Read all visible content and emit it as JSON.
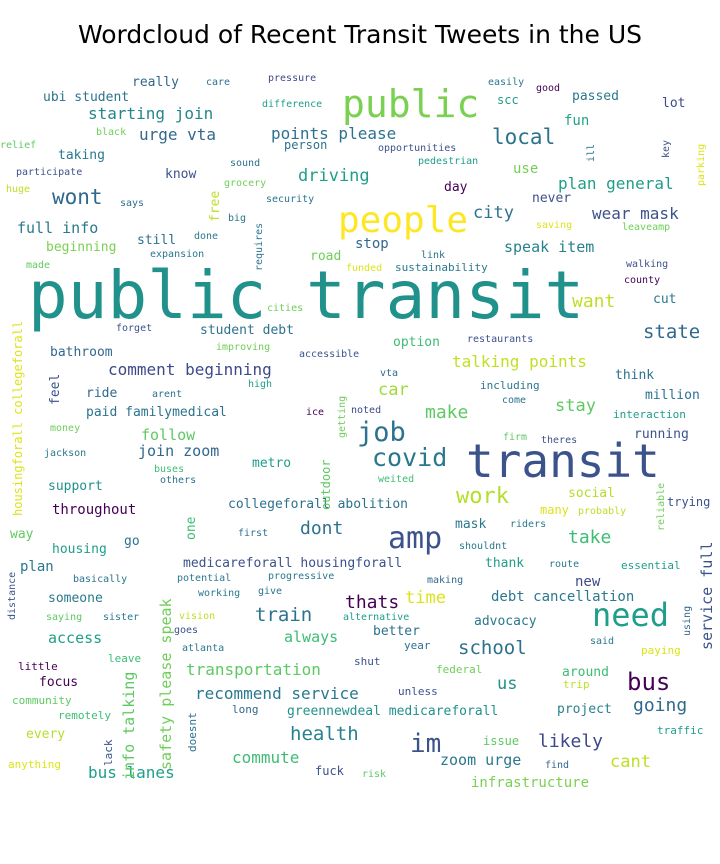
{
  "chart_data": {
    "type": "wordcloud",
    "title": "Wordcloud of Recent Transit Tweets in the US",
    "colormap": "viridis",
    "background": "#ffffff",
    "words": [
      {
        "text": "public transit",
        "weight": 1.0,
        "color": "#21918c"
      },
      {
        "text": "transit",
        "weight": 0.62,
        "color": "#3b528b"
      },
      {
        "text": "public",
        "weight": 0.55,
        "color": "#7ad151"
      },
      {
        "text": "people",
        "weight": 0.52,
        "color": "#fde725"
      },
      {
        "text": "need",
        "weight": 0.46,
        "color": "#1f9e89"
      },
      {
        "text": "amp",
        "weight": 0.44,
        "color": "#3b528b"
      },
      {
        "text": "job",
        "weight": 0.38,
        "color": "#2c728e"
      },
      {
        "text": "covid",
        "weight": 0.36,
        "color": "#2a788e"
      },
      {
        "text": "im",
        "weight": 0.36,
        "color": "#3b528b"
      },
      {
        "text": "bus",
        "weight": 0.34,
        "color": "#440154"
      },
      {
        "text": "work",
        "weight": 0.32,
        "color": "#b5de2b"
      },
      {
        "text": "wont",
        "weight": 0.3,
        "color": "#31688e"
      },
      {
        "text": "local",
        "weight": 0.3,
        "color": "#2c728e"
      },
      {
        "text": "school",
        "weight": 0.28,
        "color": "#2c728e"
      },
      {
        "text": "health",
        "weight": 0.28,
        "color": "#26828e"
      },
      {
        "text": "going",
        "weight": 0.27,
        "color": "#31688e"
      },
      {
        "text": "train",
        "weight": 0.27,
        "color": "#2c728e"
      },
      {
        "text": "state",
        "weight": 0.27,
        "color": "#31688e"
      },
      {
        "text": "likely",
        "weight": 0.26,
        "color": "#3e4989"
      },
      {
        "text": "thats",
        "weight": 0.26,
        "color": "#440154"
      },
      {
        "text": "make",
        "weight": 0.26,
        "color": "#5ec962"
      },
      {
        "text": "dont",
        "weight": 0.26,
        "color": "#2c728e"
      },
      {
        "text": "take",
        "weight": 0.26,
        "color": "#3dbc74"
      },
      {
        "text": "want",
        "weight": 0.26,
        "color": "#bddf26"
      },
      {
        "text": "city",
        "weight": 0.25,
        "color": "#2c728e"
      },
      {
        "text": "driving",
        "weight": 0.25,
        "color": "#1f9e89"
      },
      {
        "text": "cant",
        "weight": 0.25,
        "color": "#bddf26"
      },
      {
        "text": "time",
        "weight": 0.25,
        "color": "#dde318"
      },
      {
        "text": "us",
        "weight": 0.25,
        "color": "#21918c"
      },
      {
        "text": "car",
        "weight": 0.25,
        "color": "#a0da39"
      },
      {
        "text": "stay",
        "weight": 0.25,
        "color": "#5ec962"
      },
      {
        "text": "wear mask",
        "weight": 0.24,
        "color": "#3b528b"
      },
      {
        "text": "plan general",
        "weight": 0.24,
        "color": "#1f9e89"
      },
      {
        "text": "starting join",
        "weight": 0.24,
        "color": "#25858e"
      },
      {
        "text": "talking points",
        "weight": 0.24,
        "color": "#c2df23"
      },
      {
        "text": "bus lanes",
        "weight": 0.23,
        "color": "#1f9e89"
      },
      {
        "text": "transportation",
        "weight": 0.23,
        "color": "#5ec962"
      },
      {
        "text": "recommend service",
        "weight": 0.23,
        "color": "#2a788e"
      },
      {
        "text": "comment beginning",
        "weight": 0.23,
        "color": "#3e4989"
      },
      {
        "text": "commute",
        "weight": 0.23,
        "color": "#3dbc74"
      },
      {
        "text": "urge vta",
        "weight": 0.23,
        "color": "#31688e"
      },
      {
        "text": "points please",
        "weight": 0.23,
        "color": "#2c728e"
      },
      {
        "text": "zoom urge",
        "weight": 0.22,
        "color": "#2a788e"
      },
      {
        "text": "join zoom",
        "weight": 0.22,
        "color": "#31688e"
      },
      {
        "text": "speak item",
        "weight": 0.22,
        "color": "#26828e"
      },
      {
        "text": "full info",
        "weight": 0.22,
        "color": "#2a788e"
      },
      {
        "text": "access",
        "weight": 0.22,
        "color": "#1fa088"
      },
      {
        "text": "always",
        "weight": 0.22,
        "color": "#3dbc74"
      },
      {
        "text": "follow",
        "weight": 0.22,
        "color": "#5ec962"
      },
      {
        "text": "service full",
        "weight": 0.22,
        "color": "#3b528b"
      },
      {
        "text": "info talking",
        "weight": 0.22,
        "color": "#5ec962"
      },
      {
        "text": "safety please speak",
        "weight": 0.22,
        "color": "#6ece58"
      },
      {
        "text": "debt cancellation",
        "weight": 0.21,
        "color": "#2a788e"
      },
      {
        "text": "fun",
        "weight": 0.21,
        "color": "#20a486"
      },
      {
        "text": "use",
        "weight": 0.21,
        "color": "#73d056"
      },
      {
        "text": "stop",
        "weight": 0.2,
        "color": "#31688e"
      },
      {
        "text": "infrastructure",
        "weight": 0.2,
        "color": "#7ad151"
      },
      {
        "text": "new",
        "weight": 0.2,
        "color": "#3e4989"
      },
      {
        "text": "plan",
        "weight": 0.2,
        "color": "#2a788e"
      },
      {
        "text": "metro",
        "weight": 0.19,
        "color": "#1f9e89"
      },
      {
        "text": "project",
        "weight": 0.19,
        "color": "#26828e"
      },
      {
        "text": "around",
        "weight": 0.19,
        "color": "#3dbc74"
      },
      {
        "text": "student debt",
        "weight": 0.19,
        "color": "#2c728e"
      },
      {
        "text": "collegeforall abolition",
        "weight": 0.19,
        "color": "#2c728e"
      },
      {
        "text": "medicareforall housingforall",
        "weight": 0.19,
        "color": "#3b528b"
      },
      {
        "text": "paid familymedical",
        "weight": 0.19,
        "color": "#2c728e"
      },
      {
        "text": "mask",
        "weight": 0.18,
        "color": "#2a788e"
      },
      {
        "text": "thank",
        "weight": 0.18,
        "color": "#1f9e89"
      },
      {
        "text": "better",
        "weight": 0.18,
        "color": "#2c728e"
      },
      {
        "text": "advocacy",
        "weight": 0.18,
        "color": "#2a788e"
      },
      {
        "text": "throughout",
        "weight": 0.18,
        "color": "#440154"
      },
      {
        "text": "support",
        "weight": 0.18,
        "color": "#21918c"
      },
      {
        "text": "housing",
        "weight": 0.18,
        "color": "#1f9e89"
      },
      {
        "text": "bathroom",
        "weight": 0.18,
        "color": "#31688e"
      },
      {
        "text": "someone",
        "weight": 0.17,
        "color": "#2a788e"
      },
      {
        "text": "ride",
        "weight": 0.17,
        "color": "#31688e"
      },
      {
        "text": "option",
        "weight": 0.17,
        "color": "#3dbc74"
      },
      {
        "text": "million",
        "weight": 0.17,
        "color": "#2c728e"
      },
      {
        "text": "running",
        "weight": 0.17,
        "color": "#3b528b"
      },
      {
        "text": "social",
        "weight": 0.17,
        "color": "#b5de2b"
      },
      {
        "text": "every",
        "weight": 0.17,
        "color": "#b5de2b"
      },
      {
        "text": "focus",
        "weight": 0.17,
        "color": "#440154"
      },
      {
        "text": "taking",
        "weight": 0.17,
        "color": "#2a788e"
      },
      {
        "text": "know",
        "weight": 0.17,
        "color": "#3b528b"
      },
      {
        "text": "beginning",
        "weight": 0.17,
        "color": "#7ad151"
      },
      {
        "text": "still",
        "weight": 0.17,
        "color": "#2c728e"
      },
      {
        "text": "passed",
        "weight": 0.17,
        "color": "#2a788e"
      },
      {
        "text": "lot",
        "weight": 0.17,
        "color": "#3e4989"
      },
      {
        "text": "day",
        "weight": 0.17,
        "color": "#440154"
      },
      {
        "text": "think",
        "weight": 0.16,
        "color": "#2c728e"
      },
      {
        "text": "really",
        "weight": 0.16,
        "color": "#31688e"
      },
      {
        "text": "ubi student",
        "weight": 0.16,
        "color": "#2c728e"
      },
      {
        "text": "many",
        "weight": 0.16,
        "color": "#dde318"
      },
      {
        "text": "one",
        "weight": 0.16,
        "color": "#3dbc74"
      },
      {
        "text": "way",
        "weight": 0.16,
        "color": "#5ec962"
      },
      {
        "text": "go",
        "weight": 0.16,
        "color": "#2c728e"
      },
      {
        "text": "feel",
        "weight": 0.15,
        "color": "#3b528b"
      },
      {
        "text": "cut",
        "weight": 0.15,
        "color": "#2a788e"
      },
      {
        "text": "road",
        "weight": 0.15,
        "color": "#6ece58"
      },
      {
        "text": "free",
        "weight": 0.15,
        "color": "#bddf26"
      },
      {
        "text": "never",
        "weight": 0.15,
        "color": "#3b528b"
      },
      {
        "text": "trying",
        "weight": 0.15,
        "color": "#3b528b"
      },
      {
        "text": "outdoor",
        "weight": 0.15,
        "color": "#5ec962"
      },
      {
        "text": "housingforall collegeforall",
        "weight": 0.15,
        "color": "#dde318"
      },
      {
        "text": "scc",
        "weight": 0.14,
        "color": "#1f9e89"
      },
      {
        "text": "person",
        "weight": 0.14,
        "color": "#2c728e"
      },
      {
        "text": "leave",
        "weight": 0.12,
        "color": "#3dbc74"
      },
      {
        "text": "year",
        "weight": 0.12,
        "color": "#2c728e"
      },
      {
        "text": "remotely",
        "weight": 0.12,
        "color": "#3dbc74"
      },
      {
        "text": "community",
        "weight": 0.12,
        "color": "#5ec962"
      },
      {
        "text": "little",
        "weight": 0.12,
        "color": "#440154"
      },
      {
        "text": "anything",
        "weight": 0.12,
        "color": "#dde318"
      },
      {
        "text": "lack",
        "weight": 0.12,
        "color": "#3b528b"
      },
      {
        "text": "doesnt",
        "weight": 0.12,
        "color": "#2c728e"
      },
      {
        "text": "long",
        "weight": 0.12,
        "color": "#31688e"
      },
      {
        "text": "greennewdeal medicareforall",
        "weight": 0.15,
        "color": "#21918c"
      },
      {
        "text": "unless",
        "weight": 0.12,
        "color": "#3b528b"
      },
      {
        "text": "shut",
        "weight": 0.12,
        "color": "#3b528b"
      },
      {
        "text": "federal",
        "weight": 0.12,
        "color": "#6ece58"
      },
      {
        "text": "trip",
        "weight": 0.12,
        "color": "#bddf26"
      },
      {
        "text": "issue",
        "weight": 0.13,
        "color": "#5ec962"
      },
      {
        "text": "fuck",
        "weight": 0.13,
        "color": "#3b528b"
      },
      {
        "text": "risk",
        "weight": 0.11,
        "color": "#5ec962"
      },
      {
        "text": "find",
        "weight": 0.11,
        "color": "#31688e"
      },
      {
        "text": "traffic",
        "weight": 0.12,
        "color": "#1f9e89"
      },
      {
        "text": "paying",
        "weight": 0.12,
        "color": "#dde318"
      },
      {
        "text": "said",
        "weight": 0.11,
        "color": "#2a788e"
      },
      {
        "text": "using",
        "weight": 0.11,
        "color": "#31688e"
      },
      {
        "text": "essential",
        "weight": 0.12,
        "color": "#1f9e89"
      },
      {
        "text": "route",
        "weight": 0.11,
        "color": "#2a788e"
      },
      {
        "text": "making",
        "weight": 0.11,
        "color": "#31688e"
      },
      {
        "text": "shouldnt",
        "weight": 0.11,
        "color": "#2a788e"
      },
      {
        "text": "riders",
        "weight": 0.11,
        "color": "#2a788e"
      },
      {
        "text": "probably",
        "weight": 0.11,
        "color": "#bddf26"
      },
      {
        "text": "reliable",
        "weight": 0.11,
        "color": "#6ece58"
      },
      {
        "text": "theres",
        "weight": 0.11,
        "color": "#3b528b"
      },
      {
        "text": "firm",
        "weight": 0.11,
        "color": "#5ec962"
      },
      {
        "text": "come",
        "weight": 0.11,
        "color": "#2c728e"
      },
      {
        "text": "including",
        "weight": 0.12,
        "color": "#2a788e"
      },
      {
        "text": "interaction",
        "weight": 0.12,
        "color": "#1f9e89"
      },
      {
        "text": "weited",
        "weight": 0.11,
        "color": "#3dbc74"
      },
      {
        "text": "noted",
        "weight": 0.11,
        "color": "#3e4989"
      },
      {
        "text": "ice",
        "weight": 0.11,
        "color": "#440154"
      },
      {
        "text": "vta",
        "weight": 0.11,
        "color": "#31688e"
      },
      {
        "text": "getting",
        "weight": 0.11,
        "color": "#6ece58"
      },
      {
        "text": "high",
        "weight": 0.11,
        "color": "#1f9e89"
      },
      {
        "text": "arent",
        "weight": 0.11,
        "color": "#2c728e"
      },
      {
        "text": "money",
        "weight": 0.11,
        "color": "#6ece58"
      },
      {
        "text": "jackson",
        "weight": 0.11,
        "color": "#2a788e"
      },
      {
        "text": "buses",
        "weight": 0.11,
        "color": "#3dbc74"
      },
      {
        "text": "others",
        "weight": 0.11,
        "color": "#2c728e"
      },
      {
        "text": "first",
        "weight": 0.11,
        "color": "#2c728e"
      },
      {
        "text": "distance",
        "weight": 0.11,
        "color": "#3b528b"
      },
      {
        "text": "basically",
        "weight": 0.11,
        "color": "#2c728e"
      },
      {
        "text": "potential",
        "weight": 0.11,
        "color": "#2a788e"
      },
      {
        "text": "progressive",
        "weight": 0.11,
        "color": "#2a788e"
      },
      {
        "text": "working",
        "weight": 0.11,
        "color": "#2a788e"
      },
      {
        "text": "give",
        "weight": 0.11,
        "color": "#2c728e"
      },
      {
        "text": "alternative",
        "weight": 0.11,
        "color": "#1f9e89"
      },
      {
        "text": "saying",
        "weight": 0.11,
        "color": "#5ec962"
      },
      {
        "text": "sister",
        "weight": 0.11,
        "color": "#2a788e"
      },
      {
        "text": "vision",
        "weight": 0.11,
        "color": "#bddf26"
      },
      {
        "text": "goes",
        "weight": 0.11,
        "color": "#3b528b"
      },
      {
        "text": "atlanta",
        "weight": 0.11,
        "color": "#2a788e"
      },
      {
        "text": "care",
        "weight": 0.11,
        "color": "#2c728e"
      },
      {
        "text": "pressure",
        "weight": 0.11,
        "color": "#3e4989"
      },
      {
        "text": "easily",
        "weight": 0.11,
        "color": "#2a788e"
      },
      {
        "text": "good",
        "weight": 0.11,
        "color": "#440154"
      },
      {
        "text": "difference",
        "weight": 0.11,
        "color": "#1f9e89"
      },
      {
        "text": "black",
        "weight": 0.11,
        "color": "#6ece58"
      },
      {
        "text": "relief",
        "weight": 0.11,
        "color": "#5ec962"
      },
      {
        "text": "participate",
        "weight": 0.11,
        "color": "#3b528b"
      },
      {
        "text": "huge",
        "weight": 0.11,
        "color": "#bddf26"
      },
      {
        "text": "says",
        "weight": 0.11,
        "color": "#2c728e"
      },
      {
        "text": "made",
        "weight": 0.11,
        "color": "#5ec962"
      },
      {
        "text": "sound",
        "weight": 0.11,
        "color": "#2c728e"
      },
      {
        "text": "grocery",
        "weight": 0.11,
        "color": "#6ece58"
      },
      {
        "text": "security",
        "weight": 0.11,
        "color": "#2c728e"
      },
      {
        "text": "big",
        "weight": 0.11,
        "color": "#2c728e"
      },
      {
        "text": "done",
        "weight": 0.11,
        "color": "#2a788e"
      },
      {
        "text": "expansion",
        "weight": 0.11,
        "color": "#2a788e"
      },
      {
        "text": "requires",
        "weight": 0.11,
        "color": "#2c728e"
      },
      {
        "text": "opportunities",
        "weight": 0.11,
        "color": "#3b528b"
      },
      {
        "text": "pedestrian",
        "weight": 0.11,
        "color": "#1f9e89"
      },
      {
        "text": "ill",
        "weight": 0.11,
        "color": "#2c728e"
      },
      {
        "text": "key",
        "weight": 0.11,
        "color": "#3b528b"
      },
      {
        "text": "parking",
        "weight": 0.11,
        "color": "#dde318"
      },
      {
        "text": "saving",
        "weight": 0.11,
        "color": "#dde318"
      },
      {
        "text": "leaveamp",
        "weight": 0.11,
        "color": "#6ece58"
      },
      {
        "text": "link",
        "weight": 0.11,
        "color": "#2c728e"
      },
      {
        "text": "walking",
        "weight": 0.11,
        "color": "#3b528b"
      },
      {
        "text": "county",
        "weight": 0.11,
        "color": "#440154"
      },
      {
        "text": "funded",
        "weight": 0.11,
        "color": "#dde318"
      },
      {
        "text": "sustainability",
        "weight": 0.11,
        "color": "#2a788e"
      },
      {
        "text": "cities",
        "weight": 0.11,
        "color": "#6ece58"
      },
      {
        "text": "forget",
        "weight": 0.11,
        "color": "#3b528b"
      },
      {
        "text": "improving",
        "weight": 0.11,
        "color": "#6ece58"
      },
      {
        "text": "accessible",
        "weight": 0.11,
        "color": "#3b528b"
      },
      {
        "text": "restaurants",
        "weight": 0.11,
        "color": "#3b528b"
      }
    ]
  }
}
